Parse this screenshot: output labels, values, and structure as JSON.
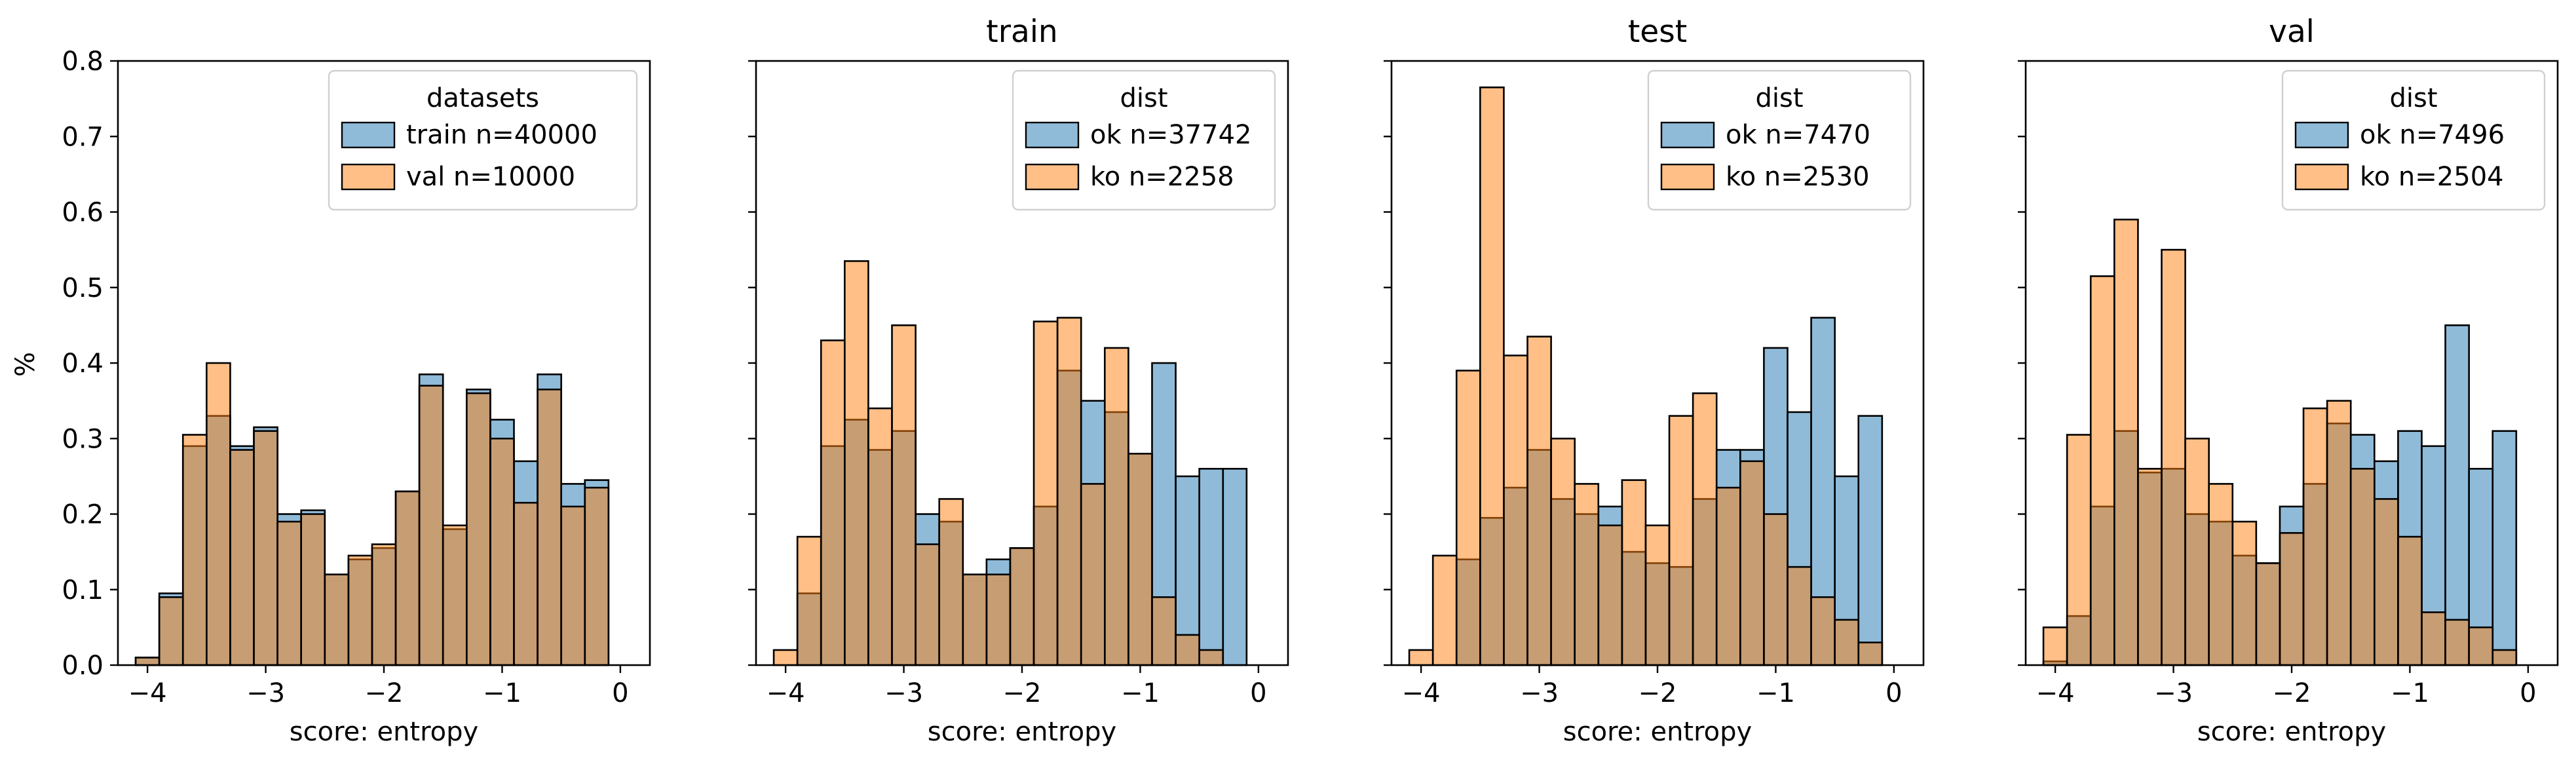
{
  "figure": {
    "ylabel": "%"
  },
  "colors": {
    "blue": "#1f77b4",
    "orange": "#ff7f0e",
    "bar_alpha": 0.5
  },
  "chart_data": [
    {
      "type": "bar",
      "title": "",
      "xlabel": "score: entropy",
      "ylabel": "%",
      "xlim": [
        -4.25,
        0.25
      ],
      "ylim": [
        0,
        0.8
      ],
      "xticks": [
        "−4",
        "−3",
        "−2",
        "−1",
        "0"
      ],
      "yticks": [
        "0.0",
        "0.1",
        "0.2",
        "0.3",
        "0.4",
        "0.5",
        "0.6",
        "0.7",
        "0.8"
      ],
      "grid": false,
      "legend": {
        "title": "datasets",
        "placement": "top-right"
      },
      "bin_start": -4.1,
      "bin_width": 0.2,
      "series": [
        {
          "name": "train n=40000",
          "color": "#1f77b4",
          "values": [
            0.01,
            0.095,
            0.29,
            0.33,
            0.29,
            0.315,
            0.2,
            0.205,
            0.12,
            0.14,
            0.155,
            0.23,
            0.385,
            0.18,
            0.365,
            0.325,
            0.27,
            0.385,
            0.24,
            0.245
          ]
        },
        {
          "name": "val n=10000",
          "color": "#ff7f0e",
          "values": [
            0.01,
            0.09,
            0.305,
            0.4,
            0.285,
            0.31,
            0.19,
            0.2,
            0.12,
            0.145,
            0.16,
            0.23,
            0.37,
            0.185,
            0.36,
            0.3,
            0.215,
            0.365,
            0.21,
            0.235
          ]
        }
      ]
    },
    {
      "type": "bar",
      "title": "train",
      "xlabel": "score: entropy",
      "ylabel": "",
      "xlim": [
        -4.25,
        0.25
      ],
      "ylim": [
        0,
        0.8
      ],
      "xticks": [
        "−4",
        "−3",
        "−2",
        "−1",
        "0"
      ],
      "yticks": [
        "",
        "",
        "",
        "",
        "",
        "",
        "",
        "",
        ""
      ],
      "grid": false,
      "legend": {
        "title": "dist",
        "placement": "top-right"
      },
      "bin_start": -4.1,
      "bin_width": 0.2,
      "series": [
        {
          "name": "ok n=37742",
          "color": "#1f77b4",
          "values": [
            0.0,
            0.095,
            0.29,
            0.325,
            0.285,
            0.31,
            0.2,
            0.19,
            0.12,
            0.14,
            0.155,
            0.21,
            0.39,
            0.35,
            0.335,
            0.28,
            0.4,
            0.25,
            0.26,
            0.26
          ]
        },
        {
          "name": "ko n=2258",
          "color": "#ff7f0e",
          "values": [
            0.02,
            0.17,
            0.43,
            0.535,
            0.34,
            0.45,
            0.16,
            0.22,
            0.12,
            0.12,
            0.155,
            0.455,
            0.46,
            0.24,
            0.42,
            0.28,
            0.09,
            0.04,
            0.02,
            0.0
          ]
        }
      ]
    },
    {
      "type": "bar",
      "title": "test",
      "xlabel": "score: entropy",
      "ylabel": "",
      "xlim": [
        -4.25,
        0.25
      ],
      "ylim": [
        0,
        0.8
      ],
      "xticks": [
        "−4",
        "−3",
        "−2",
        "−1",
        "0"
      ],
      "yticks": [
        "",
        "",
        "",
        "",
        "",
        "",
        "",
        "",
        ""
      ],
      "grid": false,
      "legend": {
        "title": "dist",
        "placement": "top-right"
      },
      "bin_start": -4.1,
      "bin_width": 0.2,
      "series": [
        {
          "name": "ok n=7470",
          "color": "#1f77b4",
          "values": [
            0.0,
            0.0,
            0.14,
            0.195,
            0.235,
            0.285,
            0.22,
            0.2,
            0.21,
            0.15,
            0.135,
            0.13,
            0.22,
            0.285,
            0.285,
            0.42,
            0.335,
            0.46,
            0.25,
            0.33
          ]
        },
        {
          "name": "ko n=2530",
          "color": "#ff7f0e",
          "values": [
            0.02,
            0.145,
            0.39,
            0.765,
            0.41,
            0.435,
            0.3,
            0.24,
            0.185,
            0.245,
            0.185,
            0.33,
            0.36,
            0.235,
            0.27,
            0.2,
            0.13,
            0.09,
            0.06,
            0.03
          ]
        }
      ]
    },
    {
      "type": "bar",
      "title": "val",
      "xlabel": "score: entropy",
      "ylabel": "",
      "xlim": [
        -4.25,
        0.25
      ],
      "ylim": [
        0,
        0.8
      ],
      "xticks": [
        "−4",
        "−3",
        "−2",
        "−1",
        "0"
      ],
      "yticks": [
        "",
        "",
        "",
        "",
        "",
        "",
        "",
        "",
        ""
      ],
      "grid": false,
      "legend": {
        "title": "dist",
        "placement": "top-right"
      },
      "bin_start": -4.1,
      "bin_width": 0.2,
      "series": [
        {
          "name": "ok n=7496",
          "color": "#1f77b4",
          "values": [
            0.005,
            0.065,
            0.21,
            0.31,
            0.255,
            0.26,
            0.2,
            0.19,
            0.145,
            0.135,
            0.21,
            0.24,
            0.32,
            0.305,
            0.27,
            0.31,
            0.29,
            0.45,
            0.26,
            0.31
          ]
        },
        {
          "name": "ko n=2504",
          "color": "#ff7f0e",
          "values": [
            0.05,
            0.305,
            0.515,
            0.59,
            0.26,
            0.55,
            0.3,
            0.24,
            0.19,
            0.135,
            0.175,
            0.34,
            0.35,
            0.26,
            0.22,
            0.17,
            0.07,
            0.06,
            0.05,
            0.02
          ]
        }
      ]
    }
  ]
}
